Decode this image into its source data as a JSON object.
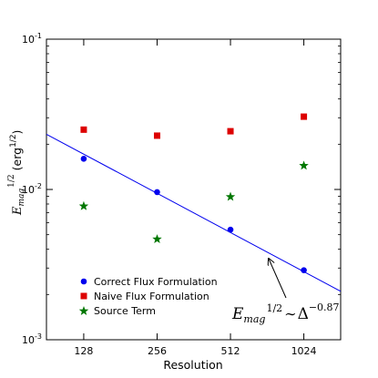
{
  "chart_data": {
    "type": "scatter",
    "xscale": "log2",
    "yscale": "log",
    "xlim": [
      90,
      1450
    ],
    "ylim": [
      0.001,
      0.1
    ],
    "x_ticks": [
      128,
      256,
      512,
      1024
    ],
    "x_tick_labels": [
      "128",
      "256",
      "512",
      "1024"
    ],
    "y_ticks": [
      0.001,
      0.01,
      0.1
    ],
    "y_tick_labels": [
      {
        "base": "10",
        "exp": "-3"
      },
      {
        "base": "10",
        "exp": "-2"
      },
      {
        "base": "10",
        "exp": "-1"
      }
    ],
    "xlabel": "Resolution",
    "ylabel": {
      "symbol": "E",
      "sub": "mag",
      "sup": "1/2",
      "unit": "(erg",
      "unit_sup": "1/2",
      "unit_close": ")"
    },
    "series": [
      {
        "name": "Correct Flux Formulation",
        "marker": "circle",
        "color": "#0000ee",
        "x": [
          128,
          256,
          512,
          1024
        ],
        "y": [
          0.016,
          0.0096,
          0.0054,
          0.0029
        ]
      },
      {
        "name": "Naive Flux Formulation",
        "marker": "square",
        "color": "#dd0000",
        "x": [
          128,
          256,
          512,
          1024
        ],
        "y": [
          0.025,
          0.0228,
          0.0244,
          0.0305
        ]
      },
      {
        "name": "Source Term",
        "marker": "star",
        "color": "#007700",
        "x": [
          128,
          256,
          512,
          1024
        ],
        "y": [
          0.0078,
          0.0047,
          0.009,
          0.0145
        ]
      }
    ],
    "fit_line": {
      "color": "#0000ee",
      "x": [
        90,
        1450
      ],
      "y": [
        0.0233,
        0.0021
      ]
    },
    "annotation": {
      "symbol": "E",
      "sub": "mag",
      "sup": "1/2",
      "relation": "∼",
      "rhs": "Δ",
      "rhs_sup": "−0.87",
      "arrow_target": {
        "x": 700,
        "y": 0.0037
      }
    },
    "legend_position": "lower-left",
    "grid": false
  }
}
